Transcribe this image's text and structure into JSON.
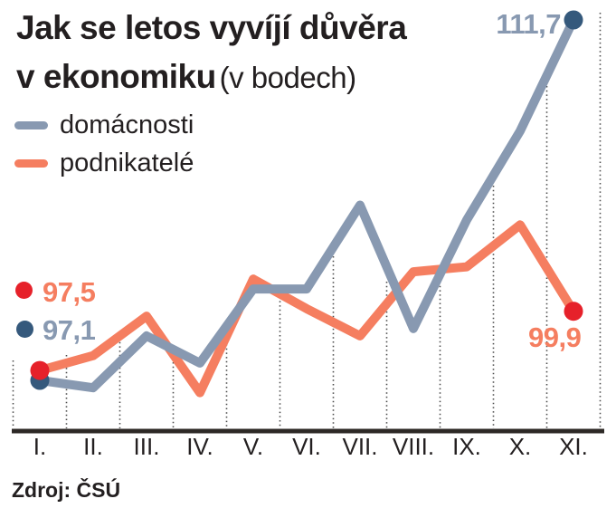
{
  "title": {
    "line1": "Jak se letos vyvíjí důvěra",
    "line2_bold": "v ekonomiku",
    "line2_suffix": "(v bodech)"
  },
  "legend": [
    {
      "label": "domácnosti",
      "color": "#8899b1"
    },
    {
      "label": "podnikatelé",
      "color": "#f57e60"
    }
  ],
  "chart_data": {
    "type": "line",
    "categories": [
      "I.",
      "II.",
      "III.",
      "IV.",
      "V.",
      "VI.",
      "VII.",
      "VIII.",
      "IX.",
      "X.",
      "XI."
    ],
    "series": [
      {
        "name": "domácnosti",
        "color": "#8899b1",
        "marker_color": "#35597c",
        "values": [
          97.1,
          96.8,
          98.9,
          97.8,
          100.8,
          100.8,
          104.2,
          99.2,
          103.6,
          107.2,
          111.7
        ]
      },
      {
        "name": "podnikatelé",
        "color": "#f57e60",
        "marker_color": "#e6212a",
        "values": [
          97.5,
          98.1,
          99.7,
          96.6,
          101.2,
          100.0,
          98.9,
          101.5,
          101.7,
          103.4,
          99.9
        ]
      }
    ],
    "ylim": [
      95,
      113
    ],
    "grid": "vertical-dotted",
    "legend_position": "top-left",
    "title": "Jak se letos vyvíjí důvěra v ekonomiku (v bodech)"
  },
  "annotations": {
    "start_podnikatele": "97,5",
    "start_domacnosti": "97,1",
    "end_domacnosti": "111,7",
    "end_podnikatele": "99,9"
  },
  "colors": {
    "households_line": "#8899b1",
    "entrepreneurs_line": "#f57e60",
    "households_dot": "#35597c",
    "entrepreneurs_dot": "#e6212a",
    "text": "#231f20"
  },
  "source": "Zdroj: ČSÚ"
}
